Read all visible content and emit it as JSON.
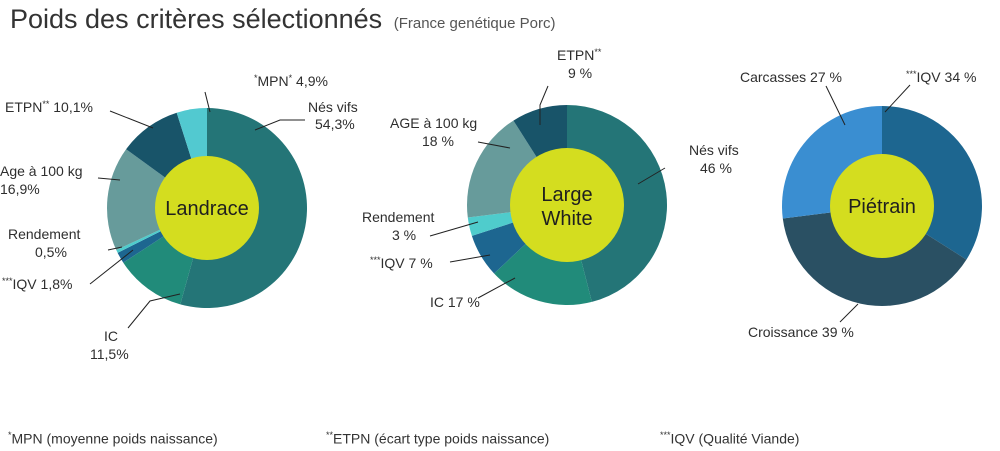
{
  "title": "Poids des critères sélectionnés",
  "subtitle": "(France genétique Porc)",
  "chart_data": [
    {
      "type": "pie",
      "center_label": "Landrace",
      "slices": [
        {
          "name": "Nés vifs",
          "value": 54.3,
          "value_label": "54,3%",
          "color": "#247577"
        },
        {
          "name": "IC",
          "value": 11.5,
          "value_label": "11,5%",
          "color": "#218b7a"
        },
        {
          "name": "IQV",
          "value": 1.8,
          "value_label": "1,8%",
          "color": "#1d6690"
        },
        {
          "name": "Rendement",
          "value": 0.5,
          "value_label": "0,5%",
          "color": "#4fcccc"
        },
        {
          "name": "Age à 100 kg",
          "value": 16.9,
          "value_label": "16,9%",
          "color": "#679b9b"
        },
        {
          "name": "ETPN",
          "value": 10.1,
          "value_label": "10,1%",
          "color": "#185469"
        },
        {
          "name": "MPN",
          "value": 4.9,
          "value_label": "4,9%",
          "color": "#52c9d0"
        }
      ]
    },
    {
      "type": "pie",
      "center_label": "Large White",
      "slices": [
        {
          "name": "Nés vifs",
          "value": 46,
          "value_label": "46 %",
          "color": "#247577"
        },
        {
          "name": "IC",
          "value": 17,
          "value_label": "17 %",
          "color": "#218b7a"
        },
        {
          "name": "IQV",
          "value": 7,
          "value_label": "7 %",
          "color": "#1d6690"
        },
        {
          "name": "Rendement",
          "value": 3,
          "value_label": "3 %",
          "color": "#4fcccc"
        },
        {
          "name": "AGE à 100 kg",
          "value": 18,
          "value_label": "18 %",
          "color": "#679b9b"
        },
        {
          "name": "ETPN",
          "value": 9,
          "value_label": "9 %",
          "color": "#185469"
        }
      ]
    },
    {
      "type": "pie",
      "center_label": "Piétrain",
      "slices": [
        {
          "name": "IQV",
          "value": 34,
          "value_label": "34 %",
          "color": "#1d6690"
        },
        {
          "name": "Croissance",
          "value": 39,
          "value_label": "39 %",
          "color": "#2a5063"
        },
        {
          "name": "Carcasses",
          "value": 27,
          "value_label": "27 %",
          "color": "#3a8ed1"
        }
      ]
    }
  ],
  "footnotes": [
    {
      "marker": "*",
      "text": "MPN (moyenne poids naissance)"
    },
    {
      "marker": "**",
      "text": "ETPN (écart type poids naissance)"
    },
    {
      "marker": "***",
      "text": "IQV (Qualité Viande)"
    }
  ],
  "markers": {
    "mpn": "*",
    "etpn": "**",
    "iqv": "***"
  },
  "center_color": "#d4dd1f"
}
